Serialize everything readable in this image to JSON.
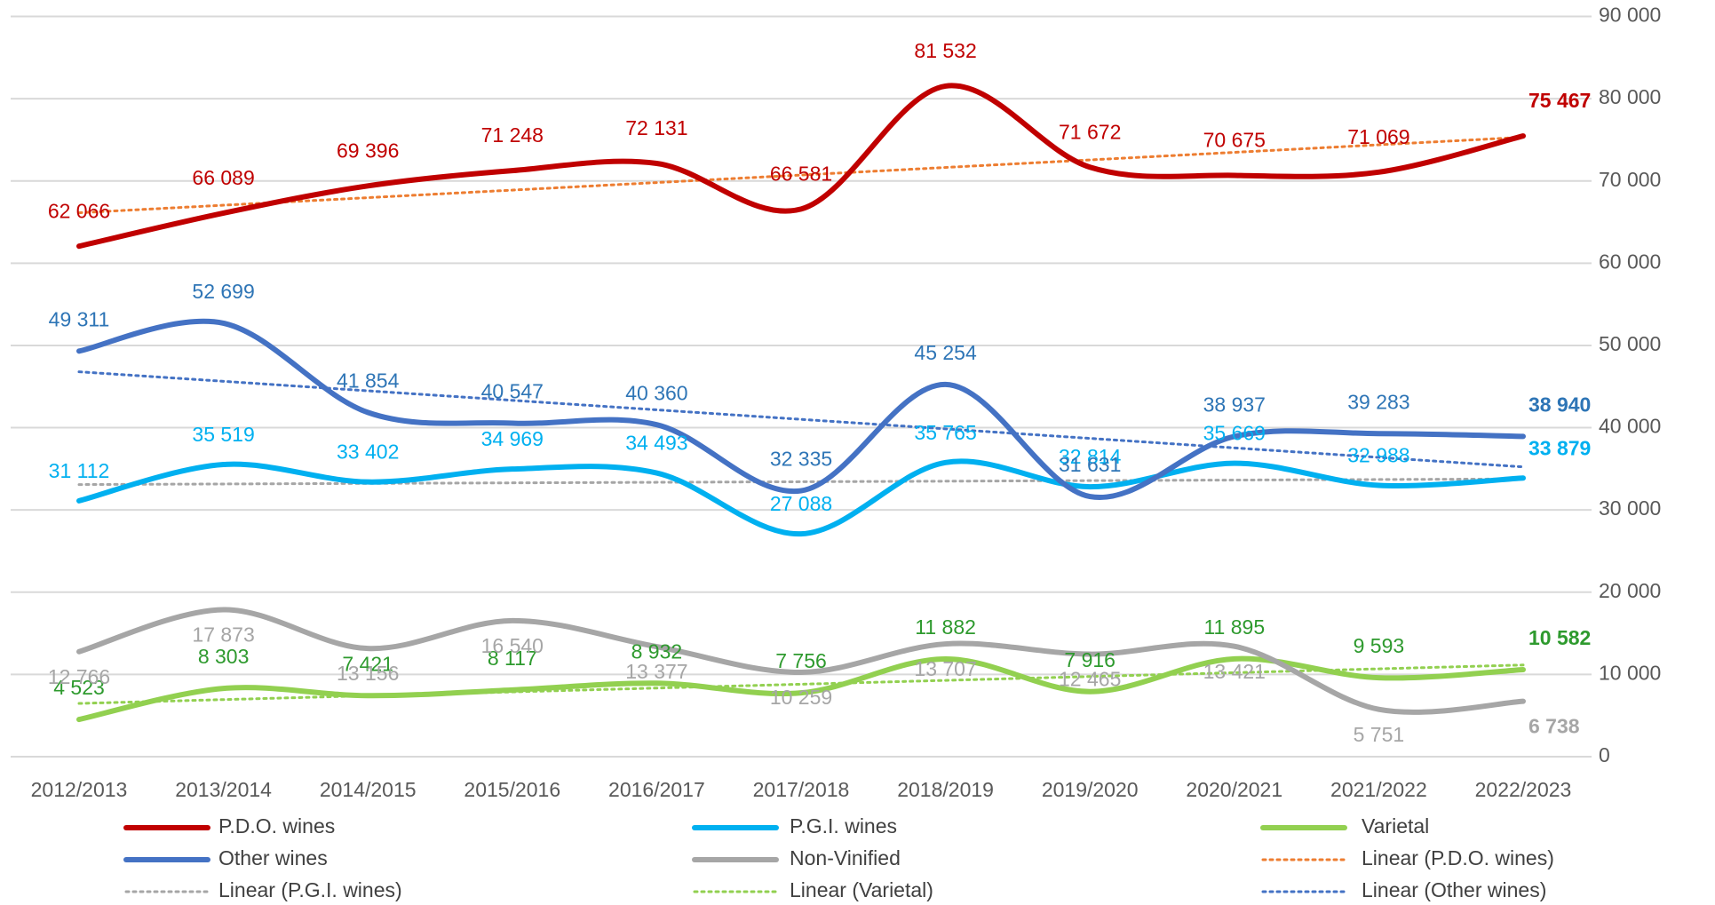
{
  "chart_data": {
    "type": "line",
    "categories": [
      "2012/2013",
      "2013/2014",
      "2014/2015",
      "2015/2016",
      "2016/2017",
      "2017/2018",
      "2018/2019",
      "2019/2020",
      "2020/2021",
      "2021/2022",
      "2022/2023"
    ],
    "ylim": [
      0,
      90000
    ],
    "yticks": [
      0,
      {
        "value": 10000,
        "label": "10 000"
      },
      {
        "value": 20000,
        "label": "20 000"
      },
      {
        "value": 30000,
        "label": "30 000"
      },
      {
        "value": 40000,
        "label": "40 000"
      },
      {
        "value": 50000,
        "label": "50 000"
      },
      {
        "value": 60000,
        "label": "60 000"
      },
      {
        "value": 70000,
        "label": "70 000"
      },
      {
        "value": 80000,
        "label": "80 000"
      },
      {
        "value": 90000,
        "label": "90 000"
      }
    ],
    "grid": true,
    "smooth": true,
    "legend": "bottom",
    "series": [
      {
        "name": "P.D.O. wines",
        "color": "#c00000",
        "label_color": "#c00000",
        "values": [
          62066,
          66089,
          69396,
          71248,
          72131,
          66581,
          81532,
          71672,
          70675,
          71069,
          75467
        ],
        "value_labels": [
          "62 066",
          "66 089",
          "69 396",
          "71 248",
          "72 131",
          "66 581",
          "81 532",
          "71 672",
          "70 675",
          "71 069",
          "75 467"
        ]
      },
      {
        "name": "P.G.I. wines",
        "color": "#00b0f0",
        "label_color": "#00b0f0",
        "values": [
          31112,
          35519,
          33402,
          34969,
          34493,
          27088,
          35765,
          32814,
          35669,
          32988,
          33879
        ],
        "value_labels": [
          "31 112",
          "35 519",
          "33 402",
          "34 969",
          "34 493",
          "27 088",
          "35 765",
          "32 814",
          "35 669",
          "32 988",
          "33 879"
        ]
      },
      {
        "name": "Varietal",
        "color": "#92d050",
        "label_color": "#2e9a2e",
        "values": [
          4523,
          8303,
          7421,
          8117,
          8932,
          7756,
          11882,
          7916,
          11895,
          9593,
          10582
        ],
        "value_labels": [
          "4 523",
          "8 303",
          "7 421",
          "8 117",
          "8 932",
          "7 756",
          "11 882",
          "7 916",
          "11 895",
          "9 593",
          "10 582"
        ]
      },
      {
        "name": "Other wines",
        "color": "#4472c4",
        "label_color": "#2e75b6",
        "values": [
          49311,
          52699,
          41854,
          40547,
          40360,
          32335,
          45254,
          31631,
          38937,
          39283,
          38940
        ],
        "value_labels": [
          "49 311",
          "52 699",
          "41 854",
          "40 547",
          "40 360",
          "32 335",
          "45 254",
          "31 631",
          "38 937",
          "39 283",
          "38 940"
        ]
      },
      {
        "name": "Non-Vinified",
        "color": "#a6a6a6",
        "label_color": "#a6a6a6",
        "values": [
          12766,
          17873,
          13156,
          16540,
          13377,
          10259,
          13707,
          12465,
          13421,
          5751,
          6738
        ],
        "value_labels": [
          "12 766",
          "17 873",
          "13 156",
          "16 540",
          "13 377",
          "10 259",
          "13 707",
          "12 465",
          "13 421",
          "5 751",
          "6 738"
        ]
      }
    ],
    "trendlines": [
      {
        "name": "Linear (P.D.O. wines)",
        "color": "#ed7d31",
        "series": 0
      },
      {
        "name": "Linear (P.G.I. wines)",
        "color": "#a6a6a6",
        "series": 1
      },
      {
        "name": "Linear (Varietal)",
        "color": "#92d050",
        "series": 2
      },
      {
        "name": "Linear (Other wines)",
        "color": "#4472c4",
        "series": 3
      }
    ]
  }
}
